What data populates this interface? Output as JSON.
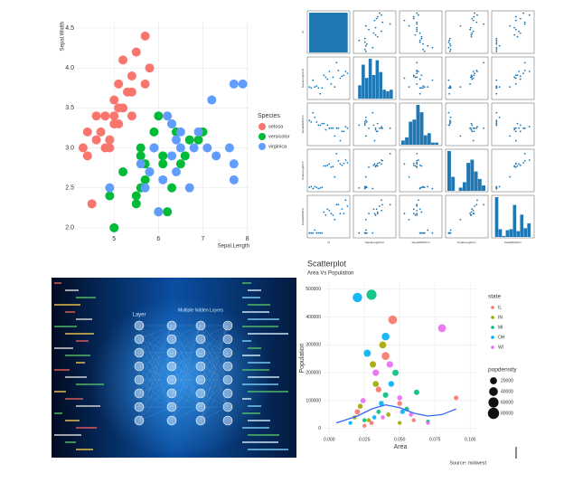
{
  "chart_data": [
    {
      "type": "scatter",
      "xlabel": "Sepal.Length",
      "ylabel": "Sepal.Width",
      "legend_title": "Species",
      "grid": true,
      "xlim": [
        4.16,
        8.05
      ],
      "ylim": [
        1.93,
        4.58
      ],
      "xticks": [
        5,
        6,
        7,
        8
      ],
      "yticks": [
        {
          "value": 2.0,
          "label": "2.0"
        },
        {
          "value": 2.5,
          "label": "2.5"
        },
        {
          "value": 3.0,
          "label": "3.0"
        },
        {
          "value": 3.5,
          "label": "3.5"
        },
        {
          "value": 4.0,
          "label": "4.0"
        },
        {
          "value": 4.5,
          "label": "4.5"
        }
      ],
      "series": [
        {
          "name": "setosa",
          "color": "#F8766D",
          "x": [
            5.1,
            4.9,
            4.7,
            4.6,
            5.0,
            5.4,
            4.6,
            5.0,
            4.4,
            4.9,
            5.4,
            4.8,
            4.8,
            4.3,
            5.8,
            5.7,
            5.7,
            5.1,
            5.2,
            5.5,
            4.5,
            4.4,
            5.3,
            5.0,
            5.1,
            5.2,
            5.4
          ],
          "values": [
            3.5,
            3.0,
            3.2,
            3.1,
            3.6,
            3.9,
            3.4,
            3.4,
            2.9,
            3.1,
            3.7,
            3.4,
            3.0,
            3.0,
            4.0,
            4.4,
            3.8,
            3.8,
            4.1,
            4.2,
            2.3,
            3.2,
            3.7,
            3.3,
            3.3,
            3.5,
            3.4
          ]
        },
        {
          "name": "versicolor",
          "color": "#00BA38",
          "x": [
            7.0,
            6.4,
            6.9,
            5.5,
            6.5,
            5.7,
            6.3,
            4.9,
            6.6,
            5.2,
            5.0,
            5.9,
            6.0,
            6.1,
            5.6,
            6.7,
            5.6,
            5.8,
            6.2,
            5.6,
            5.9,
            6.1,
            6.3,
            6.0,
            5.5,
            5.7
          ],
          "values": [
            3.2,
            3.2,
            3.1,
            2.3,
            2.8,
            2.8,
            3.3,
            2.4,
            2.9,
            2.7,
            2.0,
            3.0,
            2.2,
            2.9,
            2.9,
            3.1,
            3.0,
            2.7,
            2.2,
            2.5,
            3.2,
            2.8,
            2.5,
            3.4,
            2.4,
            2.6
          ]
        },
        {
          "name": "virginica",
          "color": "#619CFF",
          "x": [
            6.3,
            5.8,
            7.1,
            6.3,
            6.5,
            7.6,
            4.9,
            7.3,
            6.7,
            7.2,
            6.5,
            6.4,
            6.8,
            5.7,
            7.7,
            7.7,
            6.0,
            6.9,
            5.6,
            7.7,
            7.9,
            6.1,
            6.4,
            6.2,
            5.9
          ],
          "values": [
            3.3,
            2.7,
            3.0,
            2.9,
            3.0,
            3.0,
            2.5,
            2.9,
            2.5,
            3.6,
            3.2,
            2.7,
            3.0,
            2.5,
            3.8,
            2.6,
            2.2,
            3.2,
            2.8,
            2.8,
            3.8,
            2.6,
            3.1,
            3.4,
            3.0
          ]
        }
      ]
    },
    {
      "type": "pairplot",
      "color": "#1f77b4",
      "variables": [
        "Id",
        "SepalLengthCm",
        "SepalWidthCm",
        "PetalLengthCm",
        "PetalWidthCm"
      ],
      "lims": [
        [
          0,
          150
        ],
        [
          4,
          8
        ],
        [
          2,
          4.5
        ],
        [
          1,
          7
        ],
        [
          0,
          2.6
        ]
      ],
      "rows": [
        [
          1,
          5.1,
          3.5,
          1.4,
          0.2
        ],
        [
          8,
          5.0,
          3.4,
          1.5,
          0.2
        ],
        [
          15,
          5.8,
          4.0,
          1.2,
          0.2
        ],
        [
          22,
          5.1,
          3.7,
          1.5,
          0.4
        ],
        [
          29,
          5.2,
          3.4,
          1.4,
          0.2
        ],
        [
          36,
          5.0,
          3.2,
          1.2,
          0.2
        ],
        [
          43,
          4.4,
          3.2,
          1.3,
          0.2
        ],
        [
          50,
          5.0,
          3.3,
          1.4,
          0.2
        ],
        [
          57,
          6.3,
          3.3,
          4.7,
          1.6
        ],
        [
          64,
          6.1,
          2.9,
          4.7,
          1.4
        ],
        [
          71,
          5.9,
          3.2,
          4.8,
          1.8
        ],
        [
          78,
          6.7,
          3.0,
          5.0,
          1.7
        ],
        [
          85,
          5.4,
          3.0,
          4.5,
          1.5
        ],
        [
          92,
          6.1,
          3.0,
          4.6,
          1.4
        ],
        [
          99,
          5.1,
          2.5,
          3.0,
          1.1
        ],
        [
          106,
          7.6,
          3.0,
          6.6,
          2.1
        ],
        [
          113,
          6.8,
          3.0,
          5.5,
          2.1
        ],
        [
          120,
          6.0,
          2.2,
          5.0,
          1.5
        ],
        [
          127,
          6.2,
          2.8,
          4.8,
          1.8
        ],
        [
          134,
          6.3,
          2.8,
          5.1,
          1.5
        ],
        [
          141,
          6.7,
          3.1,
          5.6,
          2.4
        ],
        [
          148,
          6.5,
          3.0,
          5.2,
          2.0
        ]
      ],
      "hists": [
        {
          "bins": [
            0,
            150
          ],
          "counts": [
            150
          ]
        },
        {
          "bins": [
            4.3,
            4.66,
            5.02,
            5.38,
            5.74,
            6.1,
            6.46,
            6.82,
            7.18,
            7.54,
            7.9
          ],
          "counts": [
            9,
            23,
            14,
            27,
            16,
            26,
            18,
            6,
            5,
            6
          ]
        },
        {
          "bins": [
            2.0,
            2.24,
            2.48,
            2.72,
            2.96,
            3.2,
            3.44,
            3.68,
            3.92,
            4.16,
            4.4
          ],
          "counts": [
            4,
            7,
            22,
            24,
            38,
            31,
            9,
            11,
            2,
            2
          ]
        },
        {
          "bins": [
            1,
            1.59,
            2.18,
            2.77,
            3.36,
            3.95,
            4.54,
            5.13,
            5.72,
            6.31,
            6.9
          ],
          "counts": [
            37,
            13,
            0,
            3,
            8,
            26,
            29,
            18,
            11,
            5
          ]
        },
        {
          "bins": [
            0.1,
            0.34,
            0.58,
            0.82,
            1.06,
            1.3,
            1.54,
            1.78,
            2.02,
            2.26,
            2.5
          ],
          "counts": [
            41,
            8,
            1,
            7,
            8,
            33,
            6,
            23,
            9,
            14
          ]
        }
      ]
    },
    {
      "type": "bubble",
      "title": "Scatterplot",
      "subtitle": "Area Vs Population",
      "xlabel": "Area",
      "ylabel": "Population",
      "caption": "Source: midwest",
      "legend_title": "state",
      "grid": true,
      "xlim": [
        -0.004,
        0.105
      ],
      "ylim": [
        -20000,
        525000
      ],
      "xticks": [
        {
          "value": 0,
          "label": "0.000"
        },
        {
          "value": 0.025,
          "label": "0.025"
        },
        {
          "value": 0.05,
          "label": "0.050"
        },
        {
          "value": 0.075,
          "label": "0.075"
        },
        {
          "value": 0.1,
          "label": "0.100"
        }
      ],
      "yticks": [
        0,
        100000,
        200000,
        300000,
        400000,
        500000
      ],
      "series": [
        {
          "name": "IL",
          "color": "#F8766D",
          "x": [
            0.03,
            0.035,
            0.02,
            0.045,
            0.06,
            0.04,
            0.025,
            0.05,
            0.09
          ],
          "values": [
            20000,
            140000,
            60000,
            390000,
            30000,
            260000,
            10000,
            90000,
            110000
          ],
          "sizes": [
            3000,
            10000,
            8000,
            40000,
            2000,
            30000,
            1500,
            5000,
            4000
          ]
        },
        {
          "name": "IN",
          "color": "#A3A500",
          "x": [
            0.028,
            0.033,
            0.038,
            0.042,
            0.022,
            0.05,
            0.018,
            0.031
          ],
          "values": [
            30000,
            160000,
            300000,
            50000,
            80000,
            20000,
            40000,
            230000
          ],
          "sizes": [
            2000,
            12000,
            20000,
            3000,
            6000,
            1500,
            2500,
            15000
          ]
        },
        {
          "name": "MI",
          "color": "#00BF7D",
          "x": [
            0.03,
            0.04,
            0.055,
            0.047,
            0.025,
            0.062,
            0.035,
            0.07
          ],
          "values": [
            480000,
            120000,
            70000,
            200000,
            30000,
            130000,
            60000,
            25000
          ],
          "sizes": [
            60000,
            9000,
            4000,
            14000,
            2000,
            8000,
            3000,
            1500
          ]
        },
        {
          "name": "OH",
          "color": "#00B0F6",
          "x": [
            0.02,
            0.027,
            0.037,
            0.044,
            0.032,
            0.052,
            0.015,
            0.04
          ],
          "values": [
            470000,
            270000,
            90000,
            160000,
            40000,
            60000,
            20000,
            330000
          ],
          "sizes": [
            50000,
            22000,
            6000,
            11000,
            2500,
            4000,
            1500,
            28000
          ]
        },
        {
          "name": "WI",
          "color": "#E76BF3",
          "x": [
            0.033,
            0.043,
            0.058,
            0.024,
            0.07,
            0.038,
            0.05,
            0.08
          ],
          "values": [
            200000,
            230000,
            50000,
            100000,
            20000,
            40000,
            110000,
            360000
          ],
          "sizes": [
            15000,
            16000,
            2500,
            7000,
            1200,
            2000,
            6000,
            30000
          ]
        }
      ],
      "smooth": {
        "color": "#3366FF",
        "x": [
          0.005,
          0.02,
          0.03,
          0.04,
          0.05,
          0.06,
          0.07,
          0.08,
          0.09
        ],
        "values": [
          20000,
          45000,
          70000,
          85000,
          75000,
          55000,
          45000,
          50000,
          70000
        ]
      },
      "size_legend": {
        "title": "popdensity",
        "values": [
          20000,
          40000,
          60000,
          80000
        ]
      }
    }
  ],
  "image": {
    "labels": [
      "Layer",
      "Multiple hidden Layers"
    ]
  }
}
